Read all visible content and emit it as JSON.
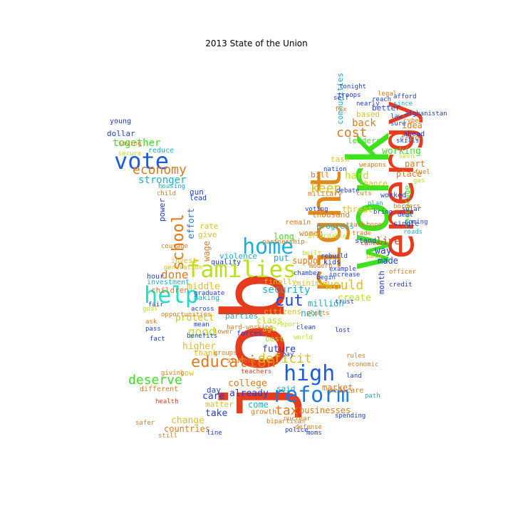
{
  "title": "2013 State of the Union",
  "words": [
    {
      "text": "job",
      "color": "#e63b1c"
    },
    {
      "text": "work",
      "color": "#3de21c"
    },
    {
      "text": "energy",
      "color": "#e63b1c"
    },
    {
      "text": "right",
      "color": "#e08a1a"
    },
    {
      "text": "families",
      "color": "#b8e21c"
    },
    {
      "text": "help",
      "color": "#1ce2c8"
    },
    {
      "text": "vote",
      "color": "#1c5ee2"
    },
    {
      "text": "home",
      "color": "#1cb0e2"
    },
    {
      "text": "high",
      "color": "#1c5ee2"
    },
    {
      "text": "reform",
      "color": "#1c7ae2"
    },
    {
      "text": "education",
      "color": "#e07a1a"
    },
    {
      "text": "school",
      "color": "#e07a1a"
    },
    {
      "text": "economy",
      "color": "#e07a1a"
    },
    {
      "text": "deficit",
      "color": "#e0c01a"
    },
    {
      "text": "cut",
      "color": "#1c4ae2"
    },
    {
      "text": "tax",
      "color": "#e07a1a"
    },
    {
      "text": "would",
      "color": "#e0c01a"
    },
    {
      "text": "deserve",
      "color": "#3de21c"
    },
    {
      "text": "keep",
      "color": "#e0c01a"
    },
    {
      "text": "cost",
      "color": "#e07a1a"
    },
    {
      "text": "good",
      "color": "#b8e21c"
    },
    {
      "text": "done",
      "color": "#e07a1a"
    },
    {
      "text": "security",
      "color": "#1cb0c8"
    },
    {
      "text": "live",
      "color": "#e63b1c"
    },
    {
      "text": "hard",
      "color": "#b8e21c"
    },
    {
      "text": "together",
      "color": "#3de21c"
    },
    {
      "text": "working",
      "color": "#3de21c"
    },
    {
      "text": "stronger",
      "color": "#1cb0c8"
    },
    {
      "text": "future",
      "color": "#1c3ee2"
    },
    {
      "text": "college",
      "color": "#e07a1a"
    },
    {
      "text": "businesses",
      "color": "#e07a1a"
    },
    {
      "text": "million",
      "color": "#1cb0c8"
    },
    {
      "text": "protect",
      "color": "#e0c01a"
    },
    {
      "text": "middle",
      "color": "#e0c01a"
    },
    {
      "text": "higher",
      "color": "#e0c01a"
    },
    {
      "text": "create",
      "color": "#b8e21c"
    },
    {
      "text": "support",
      "color": "#e07a1a"
    },
    {
      "text": "back",
      "color": "#e07a1a"
    },
    {
      "text": "part",
      "color": "#e07a1a"
    },
    {
      "text": "idea",
      "color": "#e07a1a"
    },
    {
      "text": "place",
      "color": "#e07a1a"
    },
    {
      "text": "way",
      "color": "#1c3ee2"
    },
    {
      "text": "made",
      "color": "#1c3ee2"
    },
    {
      "text": "change",
      "color": "#e0c01a"
    },
    {
      "text": "countries",
      "color": "#e07a1a"
    },
    {
      "text": "care",
      "color": "#1c3ee2"
    },
    {
      "text": "already",
      "color": "#1c3ee2"
    },
    {
      "text": "take",
      "color": "#1c3ee2"
    },
    {
      "text": "come",
      "color": "#1cb0c8"
    },
    {
      "text": "said",
      "color": "#1cb0c8"
    },
    {
      "text": "market",
      "color": "#e07a1a"
    },
    {
      "text": "class",
      "color": "#b8e21c"
    },
    {
      "text": "next",
      "color": "#1cb0c8"
    },
    {
      "text": "children",
      "color": "#e07a1a"
    },
    {
      "text": "investment",
      "color": "#1cb0c8"
    },
    {
      "text": "better",
      "color": "#1c3ee2"
    },
    {
      "text": "leaders",
      "color": "#3de21c"
    },
    {
      "text": "threat",
      "color": "#e0c01a"
    },
    {
      "text": "thousand",
      "color": "#e07a1a"
    },
    {
      "text": "progress",
      "color": "#1cb0c8"
    },
    {
      "text": "women",
      "color": "#e07a1a"
    },
    {
      "text": "citizens",
      "color": "#e0c01a"
    },
    {
      "text": "finally",
      "color": "#e0c01a"
    },
    {
      "text": "minimum",
      "color": "#e0c01a"
    },
    {
      "text": "dollar",
      "color": "#1c3ee2"
    },
    {
      "text": "young",
      "color": "#1c3ee2"
    },
    {
      "text": "reduce",
      "color": "#1cb0c8"
    },
    {
      "text": "power",
      "color": "#1c3ee2"
    },
    {
      "text": "effort",
      "color": "#1c7ae2"
    },
    {
      "text": "wage",
      "color": "#e07a1a"
    },
    {
      "text": "parties",
      "color": "#1cb0c8"
    },
    {
      "text": "ago",
      "color": "#b8e21c"
    },
    {
      "text": "best",
      "color": "#b8e21c"
    },
    {
      "text": "put",
      "color": "#1cb0c8"
    },
    {
      "text": "long",
      "color": "#3de21c"
    },
    {
      "text": "violence",
      "color": "#1cb0c8"
    },
    {
      "text": "gun",
      "color": "#1c3ee2"
    },
    {
      "text": "lead",
      "color": "#1c3ee2"
    },
    {
      "text": "rate",
      "color": "#e0c01a"
    },
    {
      "text": "give",
      "color": "#e0c01a"
    },
    {
      "text": "making",
      "color": "#1cb0c8"
    },
    {
      "text": "thank",
      "color": "#e0c01a"
    },
    {
      "text": "bill",
      "color": "#e07a1a"
    },
    {
      "text": "military",
      "color": "#e07a1a"
    },
    {
      "text": "task",
      "color": "#e0c01a"
    },
    {
      "text": "chance",
      "color": "#e0c01a"
    },
    {
      "text": "free",
      "color": "#e07a1a"
    },
    {
      "text": "communities",
      "color": "#1cb0c8"
    },
    {
      "text": "based",
      "color": "#e0c01a"
    },
    {
      "text": "matter",
      "color": "#e0c01a"
    },
    {
      "text": "growth",
      "color": "#e07a1a"
    },
    {
      "text": "remain",
      "color": "#e07a1a"
    },
    {
      "text": "encourage",
      "color": "#3de21c"
    },
    {
      "text": "medicare",
      "color": "#e07a1a"
    },
    {
      "text": "month",
      "color": "#1c3ee2"
    },
    {
      "text": "kids",
      "color": "#1c3ee2"
    },
    {
      "text": "day",
      "color": "#1c3ee2"
    },
    {
      "text": "low",
      "color": "#e0c01a"
    },
    {
      "text": "hour",
      "color": "#1c3ee2"
    },
    {
      "text": "invest",
      "color": "#e0c01a"
    },
    {
      "text": "ahead",
      "color": "#1c3ee2"
    },
    {
      "text": "single",
      "color": "#1c3ee2"
    },
    {
      "text": "worked",
      "color": "#1c3ee2"
    },
    {
      "text": "student",
      "color": "#e07a1a"
    },
    {
      "text": "forces",
      "color": "#1c3ee2"
    },
    {
      "text": "stand",
      "color": "#1c3ee2"
    },
    {
      "text": "quality",
      "color": "#1c3ee2"
    },
    {
      "text": "different",
      "color": "#e07a1a"
    },
    {
      "text": "example",
      "color": "#1c3ee2"
    },
    {
      "text": "increase",
      "color": "#1c3ee2"
    },
    {
      "text": "partnership",
      "color": "#e07a1a"
    },
    {
      "text": "bipartisan",
      "color": "#e07a1a"
    },
    {
      "text": "secure",
      "color": "#b8e21c"
    },
    {
      "text": "generation",
      "color": "#e0c01a"
    },
    {
      "text": "across",
      "color": "#1c3ee2"
    },
    {
      "text": "opportunities",
      "color": "#e07a1a"
    },
    {
      "text": "mean",
      "color": "#1c3ee2"
    },
    {
      "text": "lower",
      "color": "#e07a1a"
    },
    {
      "text": "afghanistan",
      "color": "#1c3ee2"
    },
    {
      "text": "legal",
      "color": "#e07a1a"
    },
    {
      "text": "affordable",
      "color": "#b8e21c"
    },
    {
      "text": "modern",
      "color": "#e07a1a"
    },
    {
      "text": "economic",
      "color": "#e07a1a"
    },
    {
      "text": "graduate",
      "color": "#1c3ee2"
    },
    {
      "text": "benefits",
      "color": "#1c3ee2"
    },
    {
      "text": "groups",
      "color": "#e07a1a"
    },
    {
      "text": "built",
      "color": "#b8e21c"
    },
    {
      "text": "cancer",
      "color": "#e63b1c"
    },
    {
      "text": "giving",
      "color": "#e07a1a"
    },
    {
      "text": "saving",
      "color": "#e07a1a"
    },
    {
      "text": "tonight",
      "color": "#1c3ee2"
    },
    {
      "text": "nearly",
      "color": "#1c3ee2"
    },
    {
      "text": "reach",
      "color": "#1c3ee2"
    },
    {
      "text": "since",
      "color": "#1cb0c8"
    },
    {
      "text": "cyber",
      "color": "#e07a1a"
    },
    {
      "text": "skills",
      "color": "#1c3ee2"
    },
    {
      "text": "officer",
      "color": "#e07a1a"
    },
    {
      "text": "trade",
      "color": "#e07a1a"
    },
    {
      "text": "housing",
      "color": "#1cb0c8"
    },
    {
      "text": "child",
      "color": "#e07a1a"
    },
    {
      "text": "courage",
      "color": "#e07a1a"
    },
    {
      "text": "rebuild",
      "color": "#1c3ee2"
    },
    {
      "text": "begin",
      "color": "#1c3ee2"
    },
    {
      "text": "chamber",
      "color": "#1c3ee2"
    },
    {
      "text": "police",
      "color": "#1c3ee2"
    },
    {
      "text": "credit",
      "color": "#1c3ee2"
    },
    {
      "text": "defense",
      "color": "#e07a1a"
    },
    {
      "text": "debate",
      "color": "#1c3ee2"
    },
    {
      "text": "report",
      "color": "#b8e21c"
    },
    {
      "text": "nation",
      "color": "#1c3ee2"
    },
    {
      "text": "attack",
      "color": "#e07a1a"
    },
    {
      "text": "lost",
      "color": "#1c3ee2"
    },
    {
      "text": "self",
      "color": "#1c3ee2"
    },
    {
      "text": "seen",
      "color": "#b8e21c"
    },
    {
      "text": "weapons",
      "color": "#e07a1a"
    },
    {
      "text": "voting",
      "color": "#1c3ee2"
    },
    {
      "text": "plants",
      "color": "#e07a1a"
    },
    {
      "text": "solar",
      "color": "#1c3ee2"
    },
    {
      "text": "roads",
      "color": "#1cb0c8"
    },
    {
      "text": "coming",
      "color": "#1c3ee2"
    },
    {
      "text": "paid",
      "color": "#e0c01a"
    },
    {
      "text": "hope",
      "color": "#e07a1a"
    },
    {
      "text": "fact",
      "color": "#1c3ee2"
    },
    {
      "text": "line",
      "color": "#1c3ee2"
    },
    {
      "text": "still",
      "color": "#e07a1a"
    },
    {
      "text": "teachers",
      "color": "#e63b1c"
    },
    {
      "text": "cuts",
      "color": "#e07a1a"
    },
    {
      "text": "plan",
      "color": "#1cb0c8"
    },
    {
      "text": "bring",
      "color": "#1c3ee2"
    },
    {
      "text": "goal",
      "color": "#b8e21c"
    },
    {
      "text": "fair",
      "color": "#1c3ee2"
    },
    {
      "text": "ask",
      "color": "#e07a1a"
    },
    {
      "text": "pass",
      "color": "#1c3ee2"
    },
    {
      "text": "world",
      "color": "#b8e21c"
    },
    {
      "text": "nuclear",
      "color": "#e07a1a"
    },
    {
      "text": "spending",
      "color": "#1c3ee2"
    },
    {
      "text": "health",
      "color": "#e63b1c"
    },
    {
      "text": "fix",
      "color": "#e07a1a"
    },
    {
      "text": "law",
      "color": "#1c3ee2"
    },
    {
      "text": "trust",
      "color": "#1c3ee2"
    },
    {
      "text": "hard-working",
      "color": "#e07a1a"
    },
    {
      "text": "pay",
      "color": "#1c3ee2"
    },
    {
      "text": "path",
      "color": "#1cb0c8"
    },
    {
      "text": "safer",
      "color": "#e07a1a"
    },
    {
      "text": "gas",
      "color": "#b8e21c"
    },
    {
      "text": "fuel",
      "color": "#e07a1a"
    },
    {
      "text": "clean",
      "color": "#1c3ee2"
    },
    {
      "text": "sure",
      "color": "#1c3ee2"
    },
    {
      "text": "land",
      "color": "#1c3ee2"
    },
    {
      "text": "moms",
      "color": "#1c3ee2"
    },
    {
      "text": "rules",
      "color": "#e07a1a"
    },
    {
      "text": "afford",
      "color": "#1c3ee2"
    },
    {
      "text": "borders",
      "color": "#e07a1a"
    },
    {
      "text": "deal",
      "color": "#1c3ee2"
    },
    {
      "text": "troops",
      "color": "#1c3ee2"
    }
  ]
}
